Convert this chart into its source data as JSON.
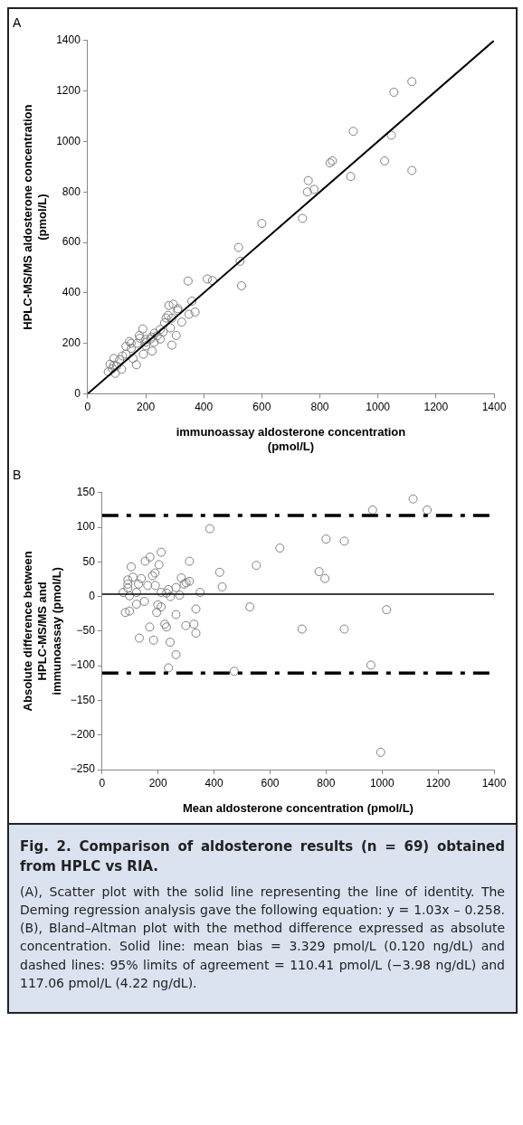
{
  "chart_data": [
    {
      "type": "scatter",
      "title": "A",
      "xlabel": "immunoassay aldosterone concentration\n(pmol/L)",
      "ylabel": "HPLC-MS/MS aldosterone concentration\n(pmol/L)",
      "xlim": [
        0,
        1400
      ],
      "ylim": [
        0,
        1400
      ],
      "xticks": [
        0,
        200,
        400,
        600,
        800,
        1000,
        1200,
        1400
      ],
      "yticks": [
        0,
        200,
        400,
        600,
        800,
        1000,
        1200,
        1400
      ],
      "grid": false,
      "series": [
        {
          "marker": "circle",
          "color": "#808080",
          "x": [
            1117,
            1055,
            915,
            1046,
            843,
            1023,
            906,
            1117,
            760,
            757,
            780,
            740,
            835,
            600,
            520,
            525,
            346,
            412,
            430,
            530,
            359,
            295,
            311,
            370,
            349,
            277,
            324,
            265,
            190,
            250,
            285,
            305,
            178,
            217,
            250,
            144,
            229,
            201,
            290,
            132,
            222,
            192,
            132,
            90,
            156,
            110,
            168,
            77,
            90,
            117,
            71,
            95,
            170,
            200,
            220,
            240,
            120,
            150,
            290,
            260,
            100,
            180,
            230,
            270,
            310,
            200,
            150,
            280,
            85
          ],
          "values": [
            1237,
            1195,
            1040,
            1025,
            923,
            923,
            861,
            885,
            845,
            800,
            810,
            695,
            915,
            675,
            580,
            525,
            447,
            455,
            449,
            428,
            367,
            355,
            337,
            324,
            315,
            311,
            284,
            281,
            257,
            255,
            261,
            231,
            231,
            217,
            217,
            207,
            204,
            204,
            193,
            188,
            169,
            157,
            157,
            140,
            140,
            135,
            115,
            117,
            113,
            97,
            87,
            81,
            200,
            215,
            225,
            230,
            150,
            180,
            300,
            245,
            110,
            220,
            240,
            300,
            330,
            190,
            200,
            350,
            100
          ]
        },
        {
          "type": "line",
          "marker": "none",
          "color": "#000000",
          "x": [
            0,
            1400
          ],
          "values": [
            0,
            1400
          ]
        }
      ]
    },
    {
      "type": "scatter",
      "title": "B",
      "xlabel": "Mean aldosterone concentration (pmol/L)",
      "ylabel": "Absolute difference between\nHPLC-MS/MS and\nimmunoassay (pmol/L)",
      "xlim": [
        0,
        1400
      ],
      "ylim": [
        -250,
        150
      ],
      "xticks": [
        0,
        200,
        400,
        600,
        800,
        1000,
        1200,
        1400
      ],
      "yticks": [
        {
          "value": -250,
          "label": "−250"
        },
        {
          "value": -200,
          "label": "−200"
        },
        {
          "value": -150,
          "label": "−150"
        },
        {
          "value": -100,
          "label": "−100"
        },
        {
          "value": -50,
          "label": "−50"
        },
        0,
        50,
        100,
        150
      ],
      "grid": false,
      "marker": "circle",
      "series": [
        {
          "color": "#808080",
          "x": [
            385,
            211,
            171,
            154,
            104,
            312,
            203,
            189,
            140,
            92,
            92,
            130,
            163,
            190,
            283,
            312,
            293,
            350,
            420,
            429,
            551,
            635,
            75,
            98,
            123,
            211,
            244,
            237,
            264,
            277,
            83,
            98,
            123,
            151,
            199,
            211,
            195,
            264,
            224,
            230,
            170,
            133,
            184,
            243,
            264,
            237,
            299,
            328,
            335,
            335,
            528,
            714,
            472,
            1111,
            966,
            1161,
            800,
            865,
            775,
            796,
            1016,
            865,
            960,
            995,
            92,
            110,
            180,
            230,
            300
          ],
          "values": [
            98,
            64,
            57,
            51,
            43,
            51,
            46,
            34,
            26,
            24,
            18,
            18,
            16,
            16,
            27,
            22,
            18,
            6,
            35,
            14,
            45,
            70,
            6,
            1,
            6,
            6,
            0,
            10,
            13,
            2,
            -23,
            -21,
            -11,
            -7,
            -12,
            -15,
            -23,
            -26,
            -40,
            -44,
            -44,
            -60,
            -63,
            -66,
            -84,
            -103,
            -42,
            -40,
            -53,
            -18,
            -15,
            -47,
            -108,
            141,
            125,
            125,
            83,
            80,
            36,
            26,
            -19,
            -47,
            -99,
            -225,
            12,
            28,
            30,
            5,
            20
          ]
        }
      ],
      "ref_lines": [
        {
          "axis": "y",
          "value": 3.329,
          "color": "#000000",
          "line_style": "solid"
        },
        {
          "axis": "y",
          "value": 117.06,
          "color": "#000000",
          "line_style": "dashed"
        },
        {
          "axis": "y",
          "value": -110.41,
          "color": "#000000",
          "line_style": "dashed"
        }
      ],
      "annotations": [
        "Fig. 2. Comparison of aldosterone results (n = 69) obtained from HPLC vs RIA.",
        "(A), Scatter plot with the solid line representing the line of identity. The Deming regression analysis gave the following equation: y = 1.03x – 0.258. (B), Bland–Altman plot with the method difference expressed as absolute concentration. Solid line: mean bias = 3.329 pmol/L (0.120 ng/dL) and dashed lines: 95% limits of agreement = 110.41 pmol/L (−3.98 ng/dL) and 117.06 pmol/L (4.22 ng/dL)."
      ]
    }
  ]
}
